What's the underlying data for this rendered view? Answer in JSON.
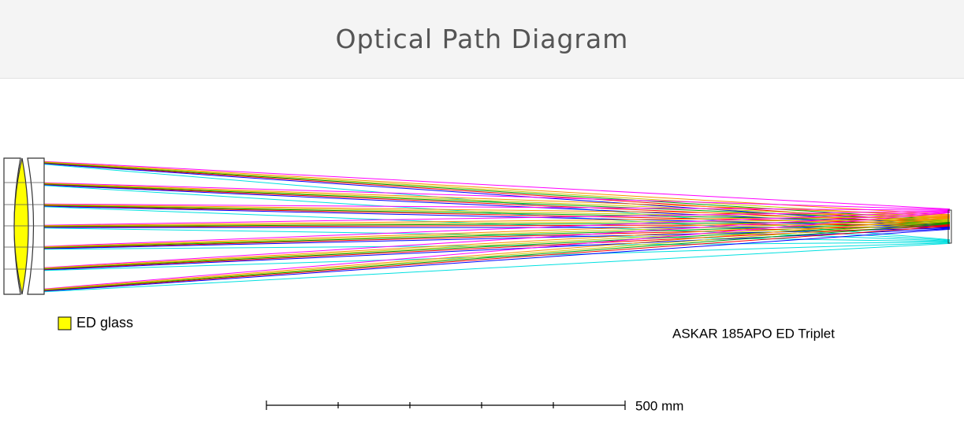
{
  "header": {
    "title": "Optical Path Diagram"
  },
  "legend": {
    "label": "ED glass"
  },
  "caption": "ASKAR 185APO ED Triplet",
  "scale_bar": {
    "label": "500 mm"
  }
}
